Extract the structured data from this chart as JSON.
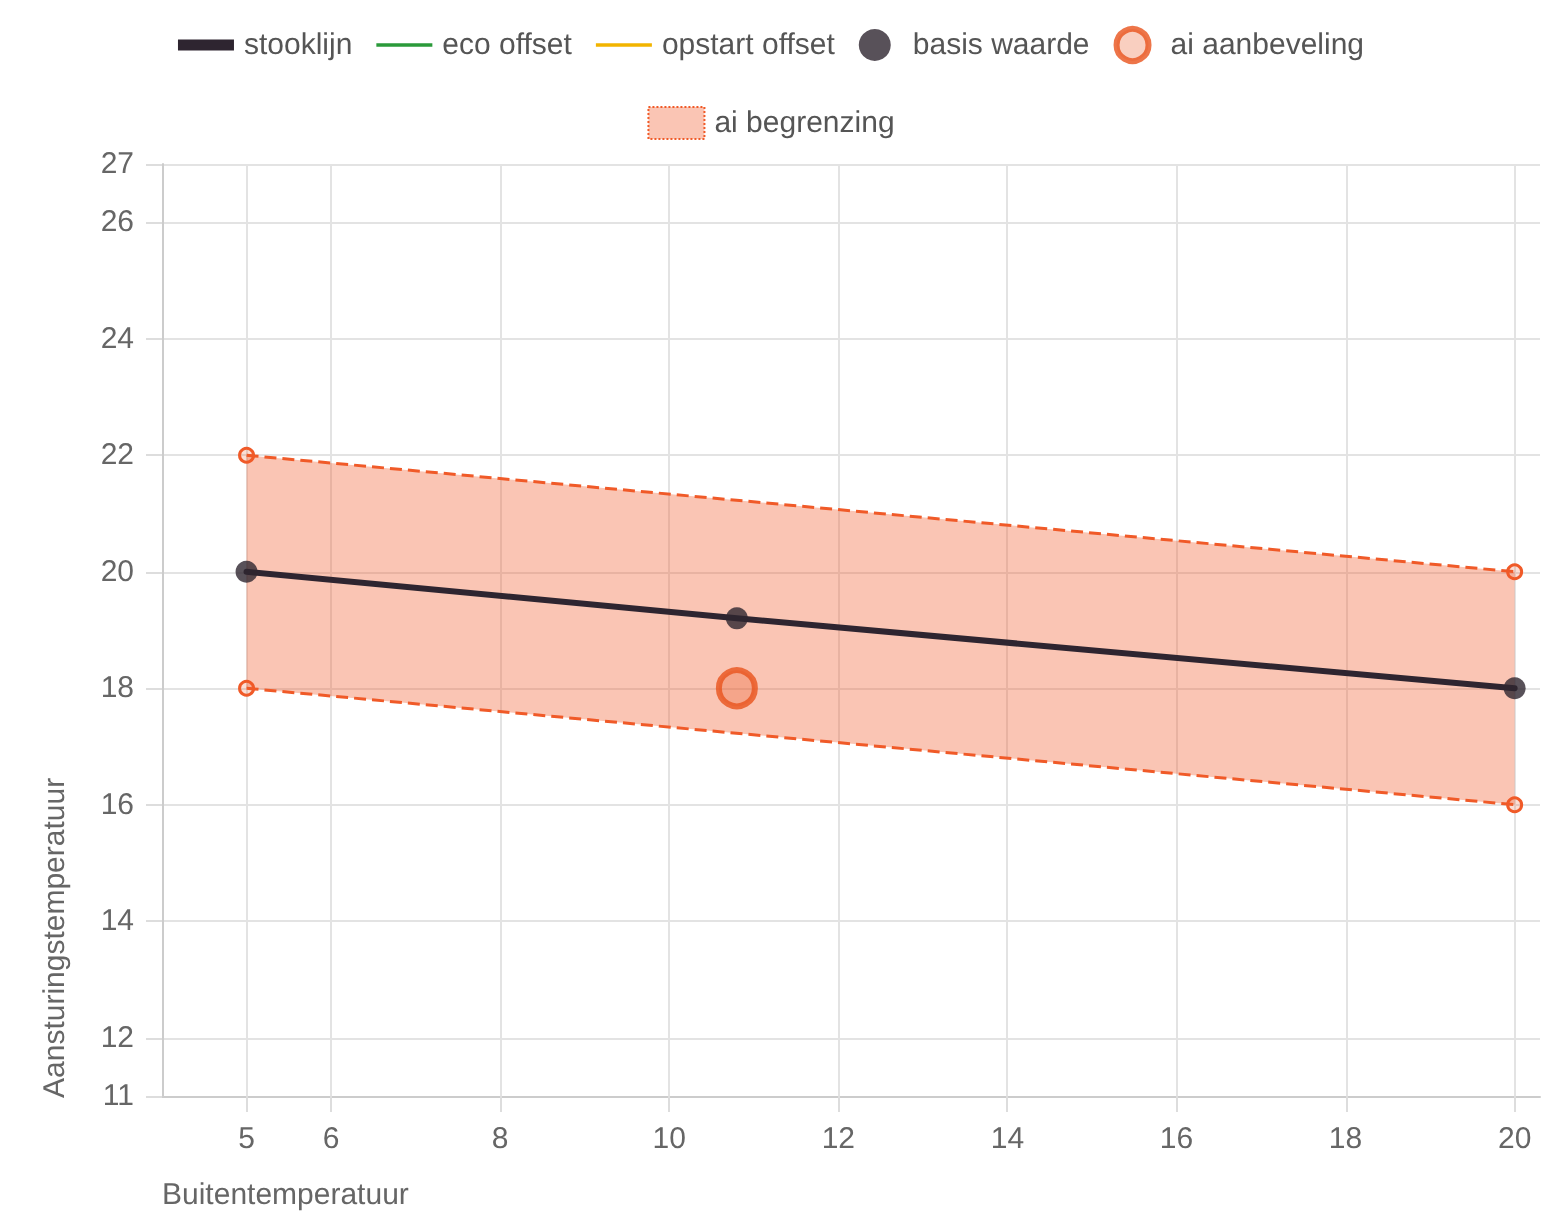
{
  "chart_data": {
    "type": "line",
    "xlabel": "Buitentemperatuur",
    "ylabel": "Aansturingstemperatuur",
    "xlim": [
      4,
      20.3
    ],
    "xticks": [
      5,
      6,
      8,
      10,
      12,
      14,
      16,
      18,
      20
    ],
    "ylim": [
      11,
      27
    ],
    "yticks": [
      11,
      12,
      14,
      16,
      18,
      20,
      22,
      24,
      26,
      27
    ],
    "grid": true,
    "legend": "top",
    "series": [
      {
        "name": "stooklijn",
        "color": "#2e2530",
        "x": [
          5,
          10.8,
          20
        ],
        "values": [
          20,
          19.2,
          18
        ],
        "marker": "none",
        "line_style": "solid"
      },
      {
        "name": "eco offset",
        "type": "line",
        "color": "#2a9a3a"
      },
      {
        "name": "opstart offset",
        "type": "line",
        "color": "#f2b400"
      },
      {
        "name": "basis waarde",
        "type": "scatter",
        "color": "#2e2530",
        "x": [
          5,
          10.8,
          20
        ],
        "values": [
          20,
          19.2,
          18
        ],
        "marker": "circle"
      },
      {
        "name": "ai aanbeveling",
        "type": "scatter",
        "color": "#e8521c",
        "x": [
          10.8
        ],
        "values": [
          18
        ],
        "marker": "circle"
      },
      {
        "name": "ai begrenzing",
        "type": "area",
        "color": "#f05a28",
        "x": [
          5,
          20
        ],
        "values": [
          null,
          null
        ],
        "lower": [
          18,
          16
        ],
        "upper": [
          22,
          20
        ],
        "marker": "circle",
        "line_style": "dashed"
      }
    ]
  }
}
